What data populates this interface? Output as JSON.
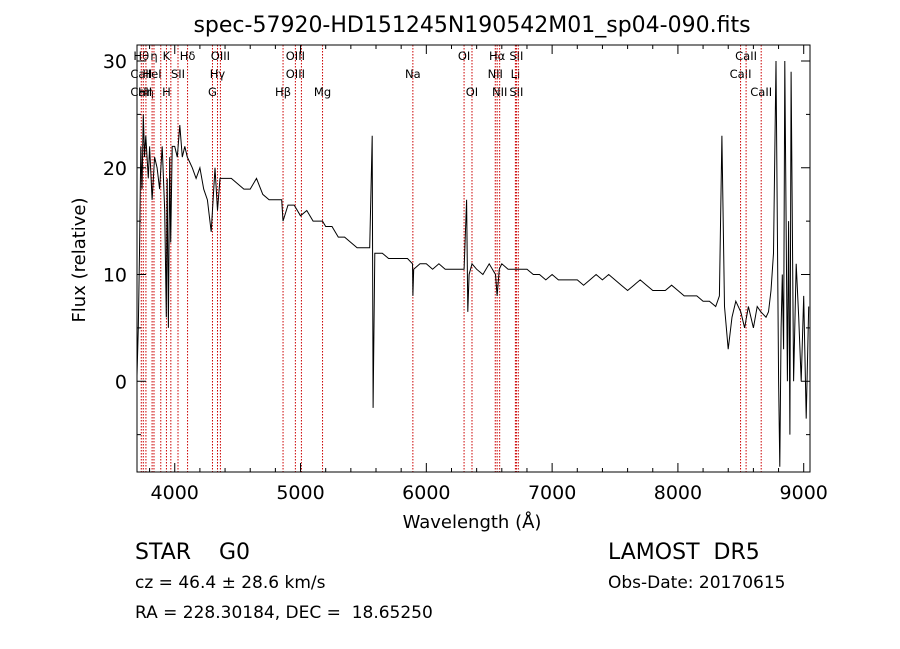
{
  "chart_data": {
    "type": "line",
    "title": "spec-57920-HD151245N190542M01_sp04-090.fits",
    "xlabel": "Wavelength (Å)",
    "ylabel": "Flux (relative)",
    "xlim": [
      3700,
      9050
    ],
    "ylim": [
      -8.5,
      31.5
    ],
    "xticks": [
      4000,
      5000,
      6000,
      7000,
      8000,
      9000
    ],
    "yticks": [
      0,
      10,
      20,
      30
    ],
    "line_color": "#000000",
    "marker_color": "#cc0000",
    "series": [
      {
        "x": [
          3700,
          3710,
          3720,
          3730,
          3740,
          3750,
          3760,
          3770,
          3790,
          3800,
          3820,
          3840,
          3860,
          3880,
          3900,
          3920,
          3933,
          3940,
          3950,
          3960,
          3968,
          3980,
          4000,
          4020,
          4040,
          4060,
          4080,
          4100,
          4120,
          4140,
          4170,
          4200,
          4230,
          4260,
          4290,
          4320,
          4340,
          4360,
          4400,
          4450,
          4500,
          4550,
          4600,
          4650,
          4700,
          4750,
          4800,
          4850,
          4861,
          4900,
          4950,
          5000,
          5050,
          5100,
          5150,
          5175,
          5200,
          5250,
          5300,
          5350,
          5400,
          5450,
          5500,
          5550,
          5570,
          5577,
          5590,
          5600,
          5650,
          5700,
          5750,
          5800,
          5850,
          5890,
          5893,
          5900,
          5950,
          6000,
          6050,
          6100,
          6150,
          6200,
          6250,
          6300,
          6320,
          6330,
          6340,
          6363,
          6400,
          6450,
          6500,
          6550,
          6563,
          6580,
          6600,
          6650,
          6700,
          6750,
          6800,
          6850,
          6900,
          6950,
          7000,
          7050,
          7100,
          7150,
          7200,
          7250,
          7300,
          7350,
          7400,
          7450,
          7500,
          7550,
          7600,
          7650,
          7700,
          7750,
          7800,
          7850,
          7900,
          7950,
          8000,
          8050,
          8100,
          8150,
          8200,
          8250,
          8300,
          8330,
          8350,
          8370,
          8400,
          8430,
          8460,
          8500,
          8530,
          8560,
          8600,
          8630,
          8660,
          8700,
          8720,
          8740,
          8760,
          8780,
          8800,
          8810,
          8820,
          8830,
          8840,
          8850,
          8870,
          8880,
          8890,
          8900,
          8920,
          8940,
          8960,
          8980,
          9000,
          9020,
          9040
        ],
        "y": [
          0.5,
          5,
          12,
          22,
          18,
          25,
          21,
          23,
          19,
          22,
          17,
          21,
          20,
          18,
          22,
          16,
          6,
          19,
          5,
          21,
          13,
          22,
          22,
          21,
          24,
          21,
          22,
          21,
          20.5,
          20,
          19,
          20,
          18,
          17,
          14,
          20,
          16,
          19,
          19,
          19,
          18.5,
          18,
          18,
          19,
          17.5,
          17,
          17,
          17,
          15,
          16.5,
          16.5,
          15.5,
          16,
          15,
          15,
          15,
          14.5,
          14.5,
          13.5,
          13.5,
          13,
          12.5,
          12.5,
          12.5,
          23,
          -2.5,
          12,
          12,
          12,
          11.5,
          11.5,
          11.5,
          11.5,
          11,
          8,
          10.5,
          11,
          11,
          10.5,
          11,
          10.5,
          10.5,
          10.5,
          10.5,
          17,
          6.5,
          10,
          11,
          10.5,
          10,
          11,
          10,
          8,
          10.5,
          11,
          10.5,
          10.5,
          10.5,
          10.5,
          10,
          10,
          9.5,
          10,
          9.5,
          9.5,
          9.5,
          9.5,
          9,
          9.5,
          10,
          9.5,
          10,
          9.5,
          9,
          8.5,
          9,
          9.5,
          9,
          8.5,
          8.5,
          8.5,
          9,
          8.5,
          8,
          8,
          8,
          7.5,
          7.5,
          7,
          8,
          23,
          7,
          3,
          6,
          7.5,
          6.5,
          5,
          7,
          5,
          7,
          6.5,
          6,
          6.5,
          8.5,
          12,
          30,
          0,
          -8,
          5,
          10,
          3,
          30,
          0,
          15,
          -5,
          29,
          0,
          11,
          6,
          0,
          8,
          -3.5,
          7
        ]
      }
    ],
    "lines": [
      {
        "x": 3734,
        "top": "Hθ",
        "mid": "CaII",
        "bot": "CaII"
      },
      {
        "x": 3750,
        "top": "",
        "mid": "",
        "bot": ""
      },
      {
        "x": 3771,
        "top": "",
        "mid": "",
        "bot": "Hη"
      },
      {
        "x": 3820,
        "top": "",
        "mid": "HeI",
        "bot": ""
      },
      {
        "x": 3835,
        "top": "η",
        "mid": "",
        "bot": ""
      },
      {
        "x": 3889,
        "top": "",
        "mid": "",
        "bot": ""
      },
      {
        "x": 3934,
        "top": "K",
        "mid": "",
        "bot": "H"
      },
      {
        "x": 3969,
        "top": "",
        "mid": "",
        "bot": ""
      },
      {
        "x": 4026,
        "top": "",
        "mid": "SII",
        "bot": ""
      },
      {
        "x": 4102,
        "top": "Hδ",
        "mid": "",
        "bot": ""
      },
      {
        "x": 4300,
        "top": "",
        "mid": "",
        "bot": "G"
      },
      {
        "x": 4340,
        "top": "",
        "mid": "Hγ",
        "bot": ""
      },
      {
        "x": 4363,
        "top": "OIII",
        "mid": "",
        "bot": ""
      },
      {
        "x": 4861,
        "top": "",
        "mid": "",
        "bot": "Hβ"
      },
      {
        "x": 4959,
        "top": "OIII",
        "mid": "OIII",
        "bot": ""
      },
      {
        "x": 5007,
        "top": "",
        "mid": "",
        "bot": ""
      },
      {
        "x": 5175,
        "top": "",
        "mid": "",
        "bot": "Mg"
      },
      {
        "x": 5893,
        "top": "",
        "mid": "Na",
        "bot": ""
      },
      {
        "x": 6300,
        "top": "OI",
        "mid": "",
        "bot": ""
      },
      {
        "x": 6363,
        "top": "",
        "mid": "",
        "bot": "OI"
      },
      {
        "x": 6548,
        "top": "",
        "mid": "NII",
        "bot": ""
      },
      {
        "x": 6563,
        "top": "Hα",
        "mid": "",
        "bot": ""
      },
      {
        "x": 6583,
        "top": "",
        "mid": "",
        "bot": "NII"
      },
      {
        "x": 6708,
        "top": "",
        "mid": "Li",
        "bot": ""
      },
      {
        "x": 6716,
        "top": "SII",
        "mid": "",
        "bot": "SII"
      },
      {
        "x": 6731,
        "top": "",
        "mid": "",
        "bot": ""
      },
      {
        "x": 8498,
        "top": "",
        "mid": "CaII",
        "bot": ""
      },
      {
        "x": 8542,
        "top": "CaII",
        "mid": "",
        "bot": ""
      },
      {
        "x": 8662,
        "top": "",
        "mid": "",
        "bot": "CaII"
      }
    ]
  },
  "info": {
    "class_line": "STAR    G0",
    "survey": "LAMOST  DR5",
    "cz": "cz = 46.4 ± 28.6 km/s",
    "obs_date": "Obs-Date: 20170615",
    "coords": "RA = 228.30184, DEC =  18.65250"
  }
}
